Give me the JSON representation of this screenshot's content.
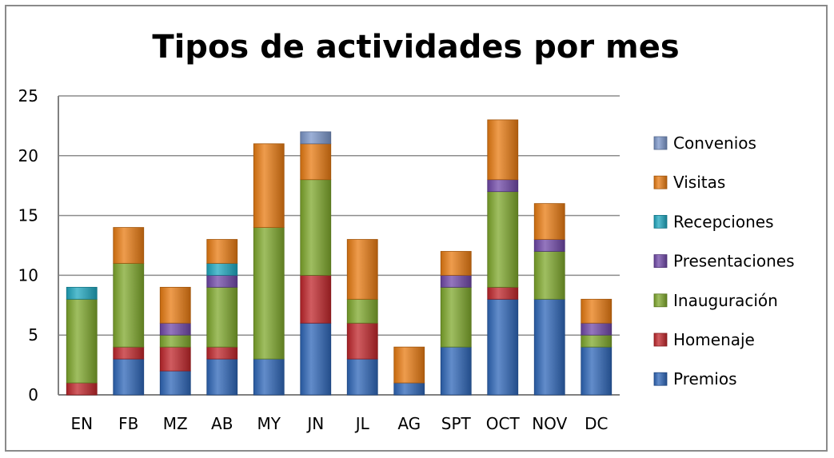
{
  "chart_data": {
    "type": "bar",
    "stacked": true,
    "title": "Tipos de actividades por mes",
    "xlabel": "",
    "ylabel": "",
    "ylim": [
      0,
      25
    ],
    "yticks": [
      "0",
      "5",
      "10",
      "15",
      "20",
      "25"
    ],
    "grid": true,
    "legend_position": "right",
    "categories": [
      "EN",
      "FB",
      "MZ",
      "AB",
      "MY",
      "JN",
      "JL",
      "AG",
      "SPT",
      "OCT",
      "NOV",
      "DC"
    ],
    "series": [
      {
        "name": "Premios",
        "color": "#2e66b8",
        "values": [
          0,
          3,
          2,
          3,
          3,
          6,
          3,
          1,
          4,
          8,
          8,
          4
        ]
      },
      {
        "name": "Homenaje",
        "color": "#c0262b",
        "values": [
          1,
          1,
          2,
          1,
          0,
          4,
          3,
          0,
          0,
          1,
          0,
          0
        ]
      },
      {
        "name": "Inauguración",
        "color": "#7fa82c",
        "values": [
          7,
          7,
          1,
          5,
          11,
          8,
          2,
          0,
          5,
          8,
          4,
          1
        ]
      },
      {
        "name": "Presentaciones",
        "color": "#7048a8",
        "values": [
          0,
          0,
          1,
          1,
          0,
          0,
          0,
          0,
          1,
          1,
          1,
          1
        ]
      },
      {
        "name": "Recepciones",
        "color": "#1fa7bf",
        "values": [
          1,
          0,
          0,
          1,
          0,
          0,
          0,
          0,
          0,
          0,
          0,
          0
        ]
      },
      {
        "name": "Visitas",
        "color": "#e87b12",
        "values": [
          0,
          3,
          3,
          2,
          7,
          3,
          5,
          3,
          2,
          5,
          3,
          2
        ]
      },
      {
        "name": "Convenios",
        "color": "#7b96c9",
        "values": [
          0,
          0,
          0,
          0,
          0,
          1,
          0,
          0,
          0,
          0,
          0,
          0
        ]
      }
    ]
  }
}
